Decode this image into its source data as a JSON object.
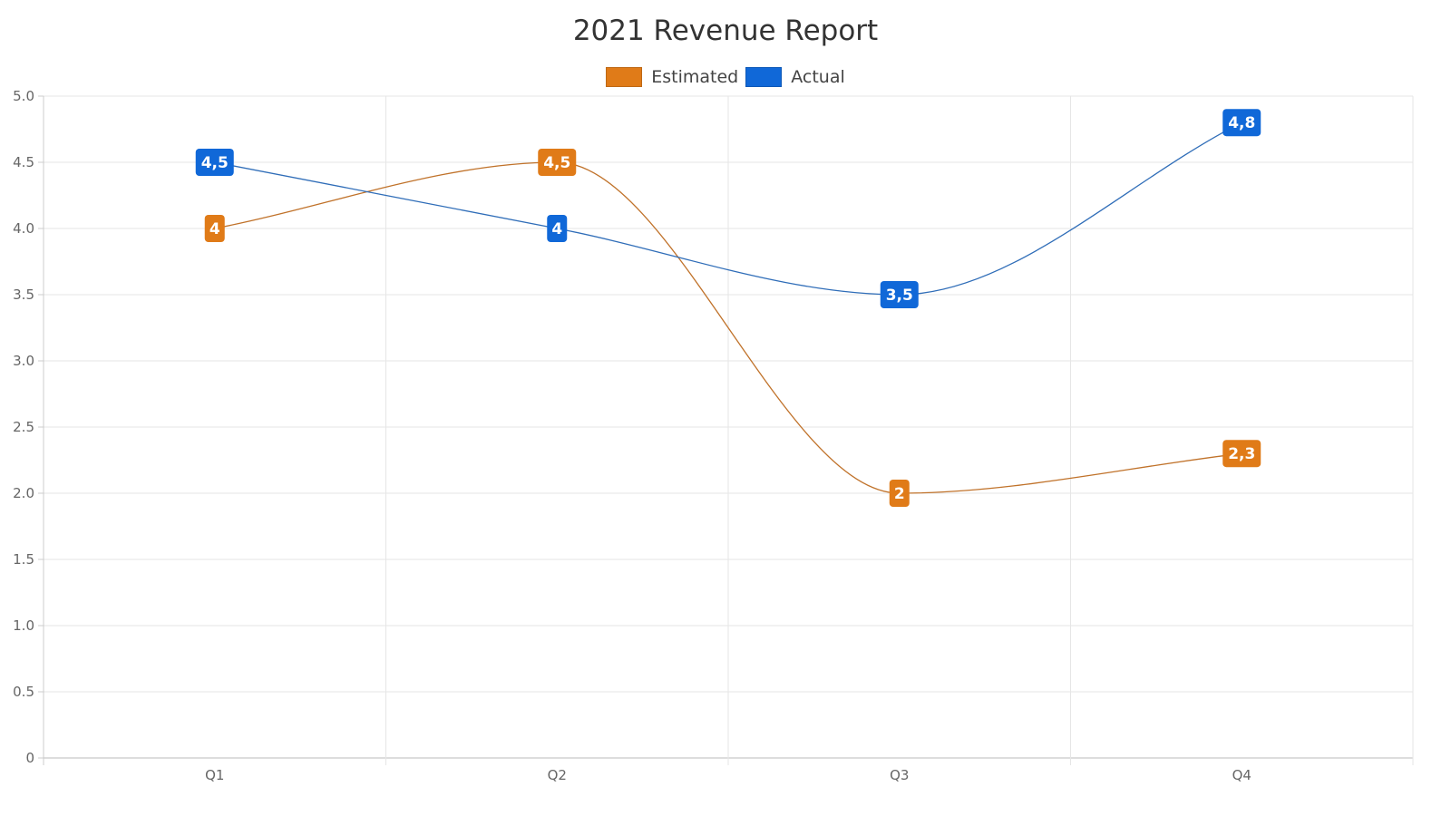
{
  "chart_data": {
    "type": "line",
    "title": "2021 Revenue Report",
    "categories": [
      "Q1",
      "Q2",
      "Q3",
      "Q4"
    ],
    "series": [
      {
        "name": "Estimated",
        "color": "#E07B18",
        "line_color": "#C0722A",
        "values": [
          4,
          4.5,
          2,
          2.3
        ],
        "labels": [
          "4",
          "4,5",
          "2",
          "2,3"
        ]
      },
      {
        "name": "Actual",
        "color": "#1068D8",
        "line_color": "#2F6DB8",
        "values": [
          4.5,
          4,
          3.5,
          4.8
        ],
        "labels": [
          "4,5",
          "4",
          "3,5",
          "4,8"
        ]
      }
    ],
    "ylim": [
      0,
      5
    ],
    "yticks": [
      "0",
      "0.5",
      "1.0",
      "1.5",
      "2.0",
      "2.5",
      "3.0",
      "3.5",
      "4.0",
      "4.5",
      "5.0"
    ],
    "grid": true,
    "legend_position": "top-center",
    "smooth": true
  }
}
